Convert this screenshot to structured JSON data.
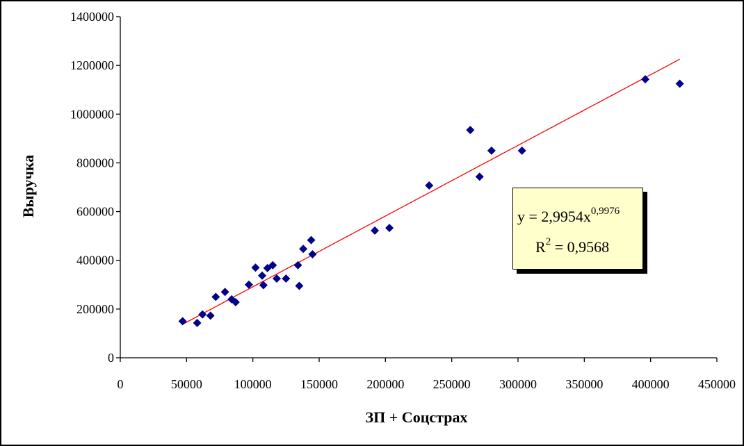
{
  "chart_data": {
    "type": "scatter",
    "title": "",
    "xlabel": "ЗП + Соцстрах",
    "ylabel": "Выручка",
    "xlim": [
      0,
      450000
    ],
    "ylim": [
      0,
      1400000
    ],
    "x_ticks": [
      "0",
      "50000",
      "100000",
      "150000",
      "200000",
      "250000",
      "300000",
      "350000",
      "400000",
      "450000"
    ],
    "y_ticks": [
      "0",
      "200000",
      "400000",
      "600000",
      "800000",
      "1000000",
      "1200000",
      "1400000"
    ],
    "grid": false,
    "marker_color": "#00008b",
    "trend_color": "#ff0000",
    "points": [
      [
        47000,
        150000
      ],
      [
        58000,
        143000
      ],
      [
        62000,
        178000
      ],
      [
        68000,
        173000
      ],
      [
        72000,
        250000
      ],
      [
        79000,
        270000
      ],
      [
        84000,
        240000
      ],
      [
        87000,
        228000
      ],
      [
        97000,
        300000
      ],
      [
        102000,
        370000
      ],
      [
        107000,
        337000
      ],
      [
        108000,
        298000
      ],
      [
        111000,
        368000
      ],
      [
        115000,
        380000
      ],
      [
        118000,
        325000
      ],
      [
        125000,
        325000
      ],
      [
        134000,
        380000
      ],
      [
        135000,
        295000
      ],
      [
        138000,
        447000
      ],
      [
        144000,
        483000
      ],
      [
        145000,
        425000
      ],
      [
        192000,
        522000
      ],
      [
        203000,
        533000
      ],
      [
        233000,
        707000
      ],
      [
        264000,
        935000
      ],
      [
        271000,
        743000
      ],
      [
        280000,
        850000
      ],
      [
        303000,
        850000
      ],
      [
        396000,
        1143000
      ],
      [
        422000,
        1125000
      ]
    ],
    "trendline": {
      "type": "power",
      "a": 2.9954,
      "b": 0.9976,
      "x_range": [
        47000,
        422000
      ],
      "equation_label": "y = 2,9954x",
      "equation_exponent": "0,9976",
      "r2_prefix": "R",
      "r2_power": "2",
      "r2_value": " = 0,9568"
    }
  }
}
